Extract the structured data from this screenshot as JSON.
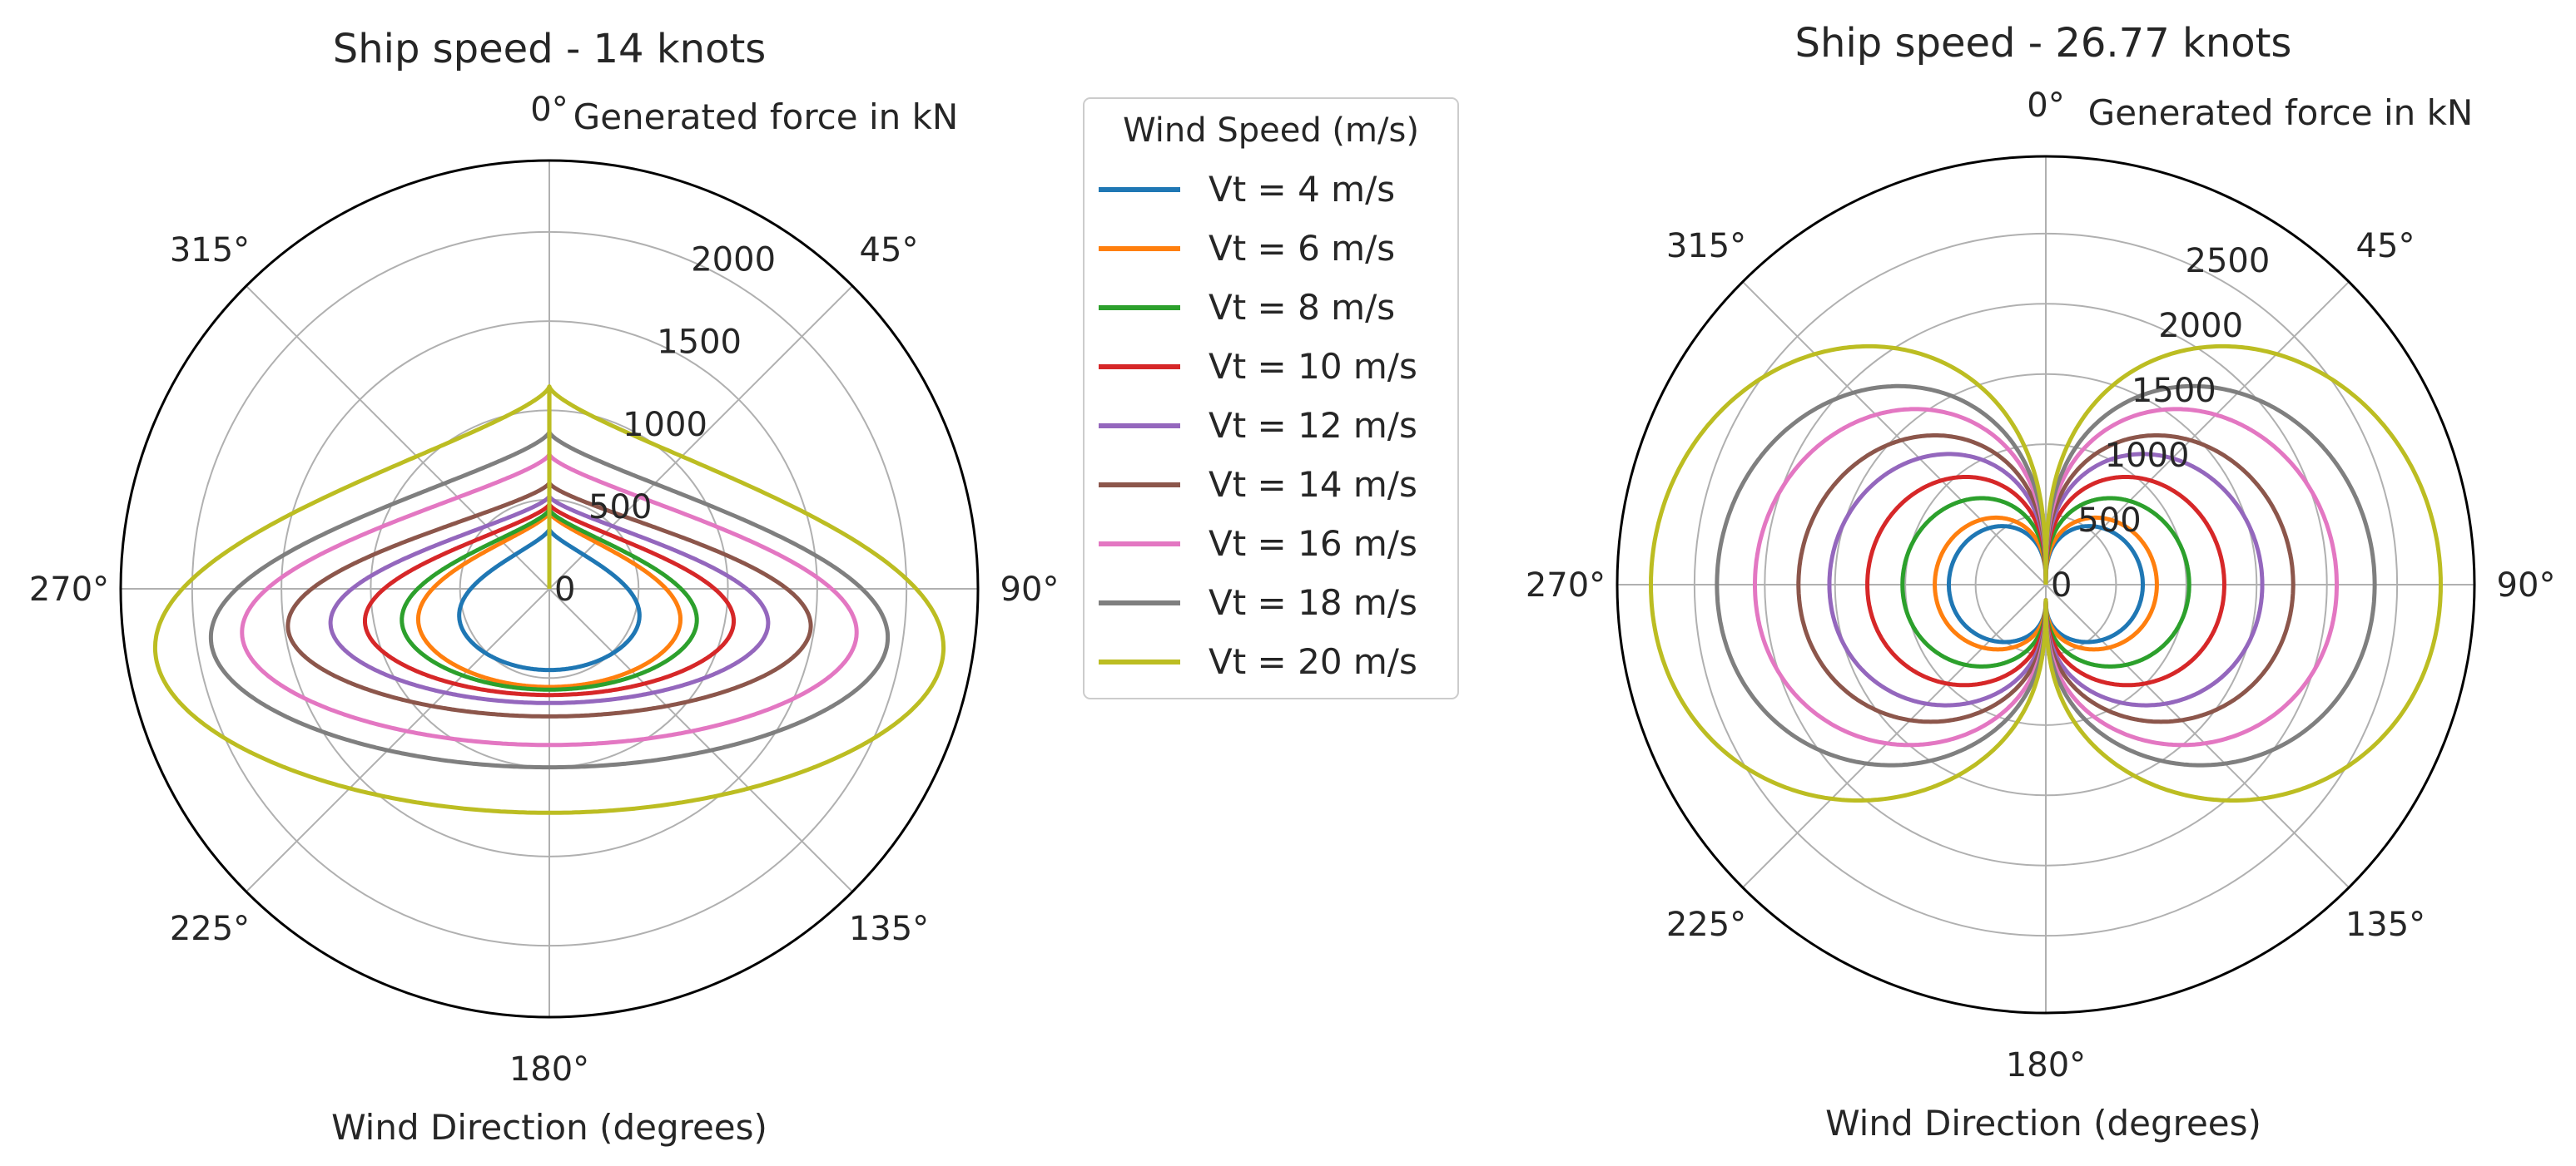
{
  "legend": {
    "title": "Wind Speed (m/s)",
    "entries": [
      "Vt = 4 m/s",
      "Vt = 6 m/s",
      "Vt = 8 m/s",
      "Vt = 10 m/s",
      "Vt = 12 m/s",
      "Vt = 14 m/s",
      "Vt = 16 m/s",
      "Vt = 18 m/s",
      "Vt = 20 m/s"
    ],
    "colors": [
      "#1f77b4",
      "#ff7f0e",
      "#2ca02c",
      "#d62728",
      "#9467bd",
      "#8c564b",
      "#e377c2",
      "#7f7f7f",
      "#bcbd22"
    ]
  },
  "chart_data": [
    {
      "type": "line",
      "projection": "polar",
      "title": "Ship speed - 14 knots",
      "xlabel": "Wind Direction (degrees)",
      "ylabel": "Generated force in kN",
      "theta_ticks": [
        "0°",
        "45°",
        "90°",
        "135°",
        "180°",
        "225°",
        "270°",
        "315°"
      ],
      "theta_direction": "clockwise",
      "theta_zero": "top",
      "r_ticks": [
        "0",
        "500",
        "1000",
        "1500",
        "2000"
      ],
      "rlim": [
        0,
        2400
      ],
      "grid": true,
      "shape": "ellipse",
      "center_r_offset": 120,
      "series": [
        {
          "name": "Vt = 4 m/s",
          "a": 550,
          "b": 335
        },
        {
          "name": "Vt = 6 m/s",
          "a": 800,
          "b": 430
        },
        {
          "name": "Vt = 8 m/s",
          "a": 900,
          "b": 445
        },
        {
          "name": "Vt = 10 m/s",
          "a": 1125,
          "b": 475
        },
        {
          "name": "Vt = 12 m/s",
          "a": 1335,
          "b": 520
        },
        {
          "name": "Vt = 14 m/s",
          "a": 1595,
          "b": 595
        },
        {
          "name": "Vt = 16 m/s",
          "a": 1875,
          "b": 755
        },
        {
          "name": "Vt = 18 m/s",
          "a": 2065,
          "b": 880
        },
        {
          "name": "Vt = 20 m/s",
          "a": 2405,
          "b": 1135
        }
      ]
    },
    {
      "type": "line",
      "projection": "polar",
      "title": "Ship speed - 26.77 knots",
      "xlabel": "Wind Direction (degrees)",
      "ylabel": "Generated force in kN",
      "theta_ticks": [
        "0°",
        "45°",
        "90°",
        "135°",
        "180°",
        "225°",
        "270°",
        "315°"
      ],
      "theta_direction": "clockwise",
      "theta_zero": "top",
      "r_ticks": [
        "0",
        "500",
        "1000",
        "1500",
        "2000",
        "2500"
      ],
      "rlim": [
        0,
        3050
      ],
      "grid": true,
      "shape": "lobes",
      "series": [
        {
          "name": "Vt = 4 m/s",
          "peak": 690
        },
        {
          "name": "Vt = 6 m/s",
          "peak": 790
        },
        {
          "name": "Vt = 8 m/s",
          "peak": 1020
        },
        {
          "name": "Vt = 10 m/s",
          "peak": 1270
        },
        {
          "name": "Vt = 12 m/s",
          "peak": 1540
        },
        {
          "name": "Vt = 14 m/s",
          "peak": 1760
        },
        {
          "name": "Vt = 16 m/s",
          "peak": 2070
        },
        {
          "name": "Vt = 18 m/s",
          "peak": 2340
        },
        {
          "name": "Vt = 20 m/s",
          "peak": 2810
        }
      ]
    }
  ]
}
